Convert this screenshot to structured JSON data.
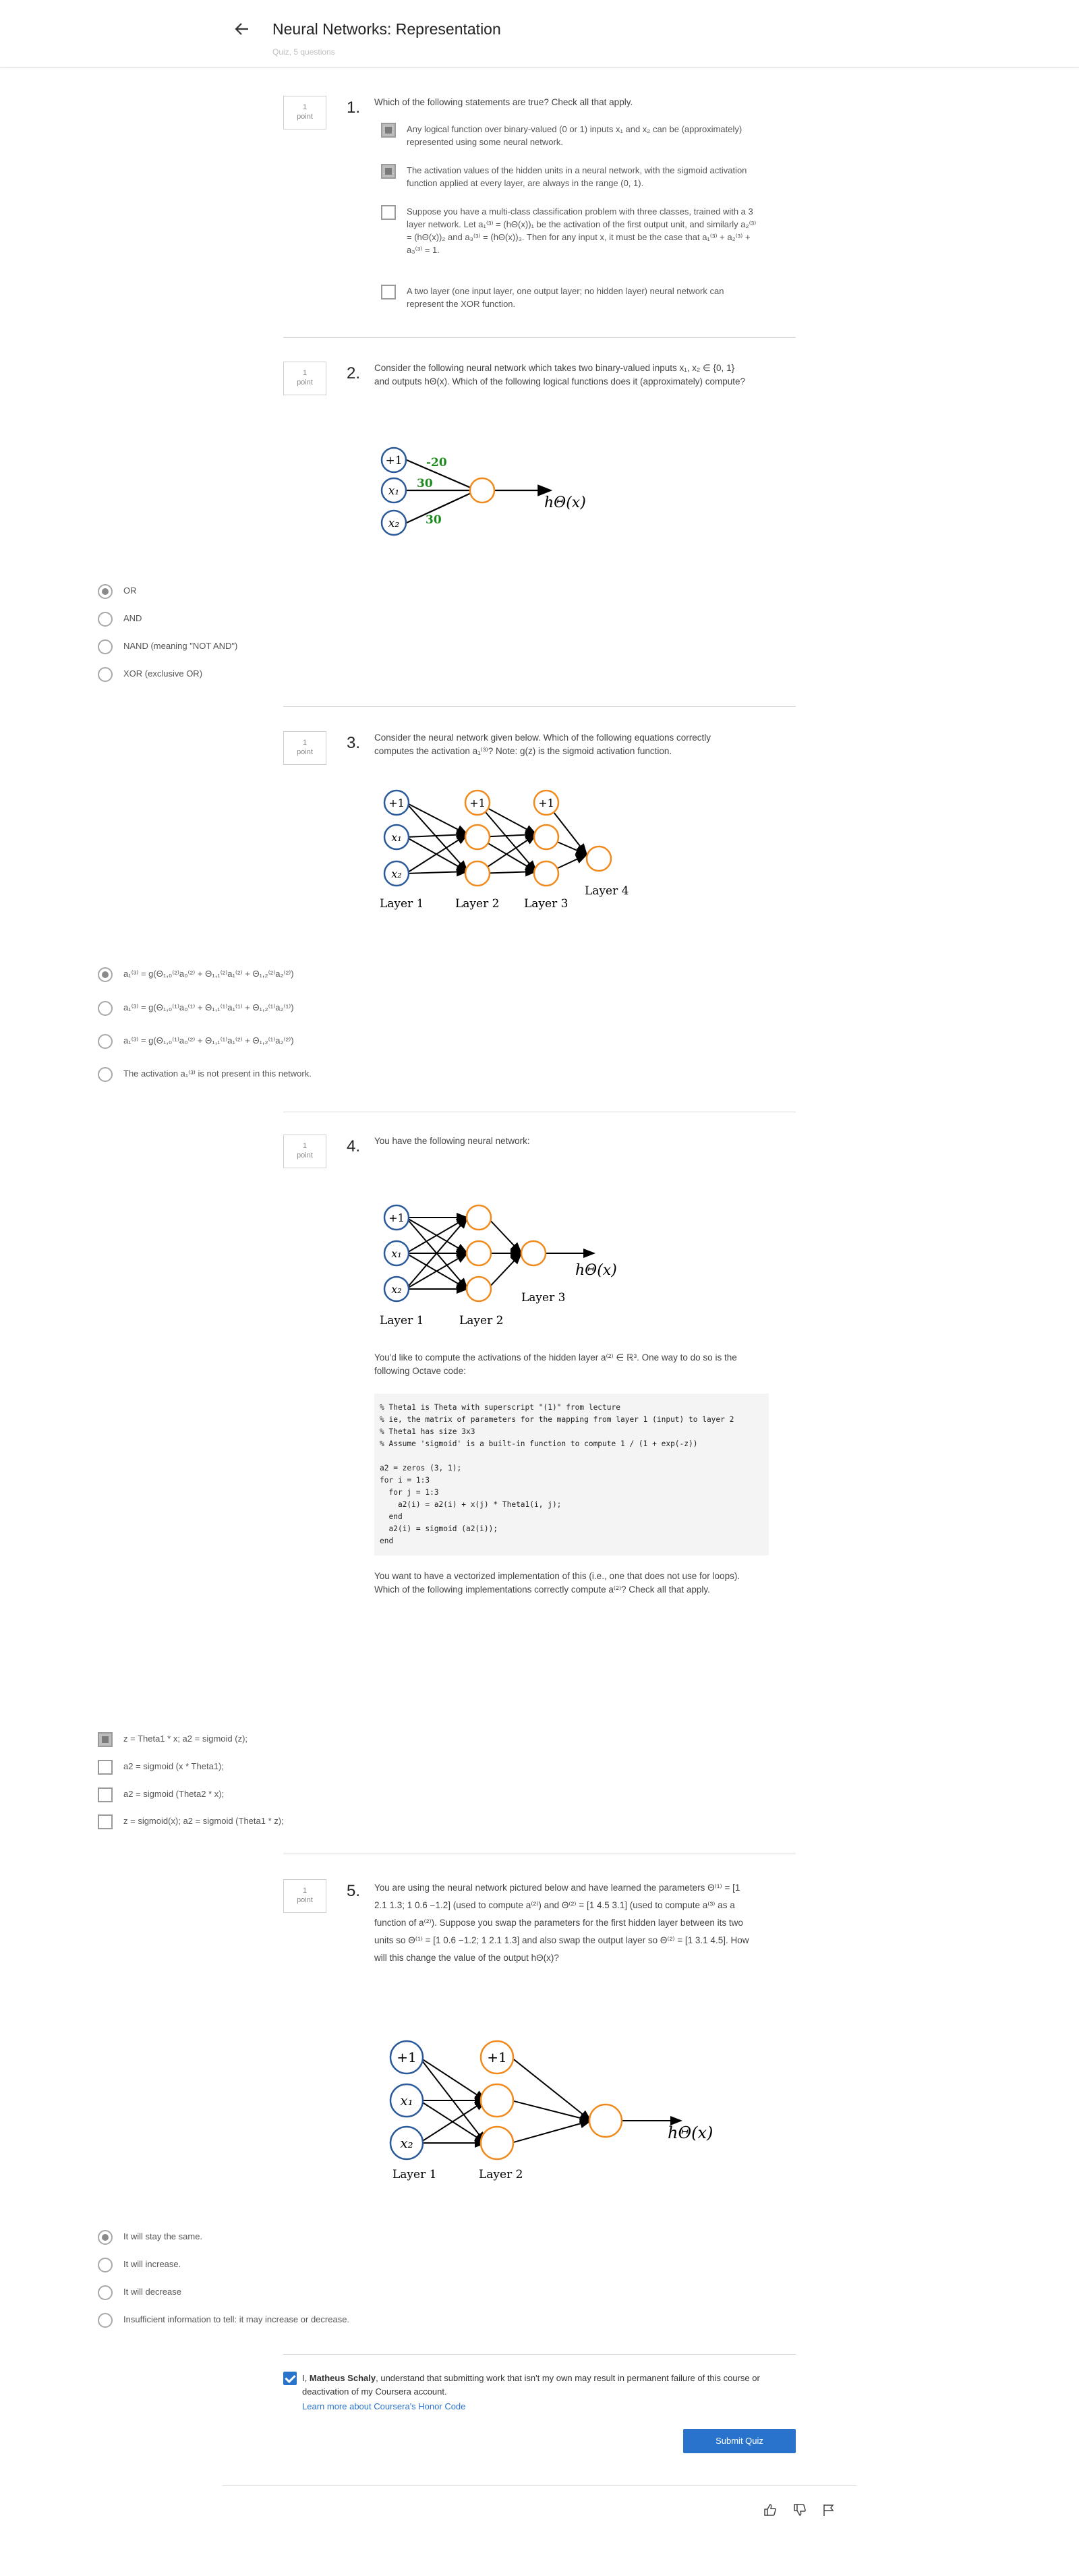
{
  "header": {
    "title": "Neural Networks: Representation",
    "subtitle": "Quiz, 5 questions"
  },
  "point_box": {
    "value": "1",
    "label": "point"
  },
  "questions": [
    {
      "number": "1.",
      "text": "Which of the following statements are true? Check all that apply.",
      "options": [
        {
          "checked": true,
          "text": "Any logical function over binary-valued (0 or 1) inputs x₁ and x₂ can be (approximately) represented using some neural network."
        },
        {
          "checked": true,
          "text": "The activation values of the hidden units in a neural network, with the sigmoid activation function applied at every layer, are always in the range (0, 1)."
        },
        {
          "checked": false,
          "text": "Suppose you have a multi-class classification problem with three classes, trained with a 3 layer network. Let a₁⁽³⁾ = (hΘ(x))₁ be the activation of the first output unit, and similarly a₂⁽³⁾ = (hΘ(x))₂ and a₃⁽³⁾ = (hΘ(x))₃. Then for any input x, it must be the case that a₁⁽³⁾ + a₂⁽³⁾ + a₃⁽³⁾ = 1."
        },
        {
          "checked": false,
          "text": "A two layer (one input layer, one output layer; no hidden layer) neural network can represent the XOR function."
        }
      ]
    },
    {
      "number": "2.",
      "text": "Consider the following neural network which takes two binary-valued inputs x₁, x₂ ∈ {0, 1} and outputs hΘ(x). Which of the following logical functions does it (approximately) compute?",
      "diagram": {
        "w0": "-20",
        "w1": "30",
        "w2": "30",
        "n0": "+1",
        "n1": "x₁",
        "n2": "x₂",
        "out": "hΘ(x)"
      },
      "options": [
        {
          "checked": true,
          "text": "OR"
        },
        {
          "checked": false,
          "text": "AND"
        },
        {
          "checked": false,
          "text": "NAND (meaning \"NOT AND\")"
        },
        {
          "checked": false,
          "text": "XOR (exclusive OR)"
        }
      ]
    },
    {
      "number": "3.",
      "text": "Consider the neural network given below. Which of the following equations correctly computes the activation a₁⁽³⁾? Note: g(z) is the sigmoid activation function.",
      "layers": [
        "Layer 1",
        "Layer 2",
        "Layer 3",
        "Layer 4"
      ],
      "options": [
        {
          "checked": true,
          "text": "a₁⁽³⁾ = g(Θ₁,₀⁽²⁾a₀⁽²⁾ + Θ₁,₁⁽²⁾a₁⁽²⁾ + Θ₁,₂⁽²⁾a₂⁽²⁾)"
        },
        {
          "checked": false,
          "text": "a₁⁽³⁾ = g(Θ₁,₀⁽¹⁾a₀⁽¹⁾ + Θ₁,₁⁽¹⁾a₁⁽¹⁾ + Θ₁,₂⁽¹⁾a₂⁽¹⁾)"
        },
        {
          "checked": false,
          "text": "a₁⁽³⁾ = g(Θ₁,₀⁽¹⁾a₀⁽²⁾ + Θ₁,₁⁽¹⁾a₁⁽²⁾ + Θ₁,₂⁽¹⁾a₂⁽²⁾)"
        },
        {
          "checked": false,
          "text": "The activation a₁⁽³⁾ is not present in this network."
        }
      ]
    },
    {
      "number": "4.",
      "text": "You have the following neural network:",
      "layers": [
        "Layer 1",
        "Layer 2",
        "Layer 3"
      ],
      "out": "hΘ(x)",
      "text2": "You'd like to compute the activations of the hidden layer a⁽²⁾ ∈ ℝ³. One way to do so is the following Octave code:",
      "code": "% Theta1 is Theta with superscript \"(1)\" from lecture\n% ie, the matrix of parameters for the mapping from layer 1 (input) to layer 2\n% Theta1 has size 3x3\n% Assume 'sigmoid' is a built-in function to compute 1 / (1 + exp(-z))\n\na2 = zeros (3, 1);\nfor i = 1:3\n  for j = 1:3\n    a2(i) = a2(i) + x(j) * Theta1(i, j);\n  end\n  a2(i) = sigmoid (a2(i));\nend",
      "text3": "You want to have a vectorized implementation of this (i.e., one that does not use for loops). Which of the following implementations correctly compute a⁽²⁾? Check all that apply.",
      "options": [
        {
          "checked": true,
          "text": "z = Theta1 * x; a2 = sigmoid (z);"
        },
        {
          "checked": false,
          "text": "a2 = sigmoid (x * Theta1);"
        },
        {
          "checked": false,
          "text": "a2 = sigmoid (Theta2 * x);"
        },
        {
          "checked": false,
          "text": "z = sigmoid(x); a2 = sigmoid (Theta1 * z);"
        }
      ]
    },
    {
      "number": "5.",
      "text": "You are using the neural network pictured below and have learned the parameters Θ⁽¹⁾ = [1 2.1 1.3; 1 0.6 −1.2] (used to compute a⁽²⁾) and Θ⁽²⁾ = [1 4.5 3.1] (used to compute a⁽³⁾ as a function of a⁽²⁾). Suppose you swap the parameters for the first hidden layer between its two units so Θ⁽¹⁾ = [1 0.6 −1.2; 1 2.1 1.3] and also swap the output layer so Θ⁽²⁾ = [1 3.1 4.5]. How will this change the value of the output hΘ(x)?",
      "layers": [
        "Layer 1",
        "Layer 2"
      ],
      "out": "hΘ(x)",
      "options": [
        {
          "checked": true,
          "text": "It will stay the same."
        },
        {
          "checked": false,
          "text": "It will increase."
        },
        {
          "checked": false,
          "text": "It will decrease"
        },
        {
          "checked": false,
          "text": "Insufficient information to tell: it may increase or decrease."
        }
      ]
    }
  ],
  "honor": {
    "prefix": "I, ",
    "name": "Matheus Schaly",
    "text": ", understand that submitting work that isn't my own may result in permanent failure of this course or deactivation of my Coursera account.",
    "link": "Learn more about Coursera's Honor Code"
  },
  "submit_label": "Submit Quiz",
  "colors": {
    "input_node": "#2a5a9a",
    "hidden_node": "#f08a1c",
    "weight": "#1a8a1a",
    "accent": "#2a73cc"
  }
}
